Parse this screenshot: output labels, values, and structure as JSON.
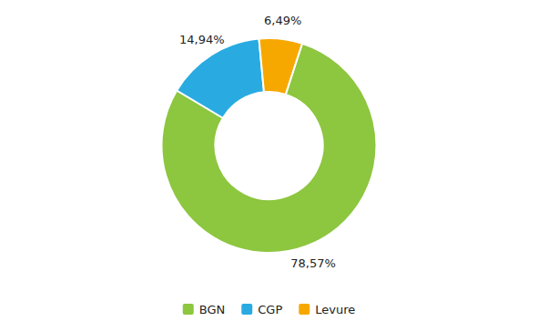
{
  "chart_data": {
    "type": "donut",
    "categories": [
      "BGN",
      "CGP",
      "Levure"
    ],
    "values": [
      78.57,
      14.94,
      6.49
    ],
    "value_labels": [
      "78,57%",
      "14,94%",
      "6,49%"
    ],
    "colors": [
      "#8dc63f",
      "#29abe2",
      "#f7a800"
    ],
    "legend": "bottom",
    "data_labels": true
  }
}
